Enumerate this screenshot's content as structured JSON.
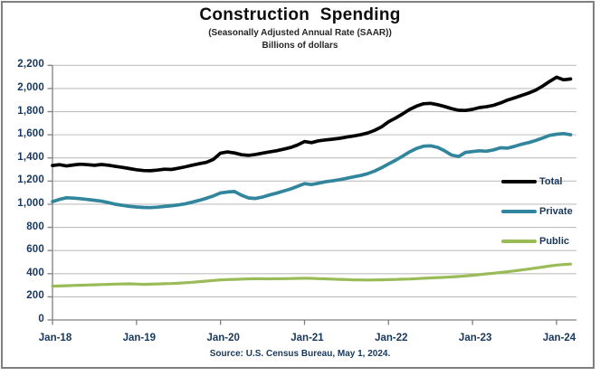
{
  "header": {
    "title": "Construction Spending",
    "subtitle1": "(Seasonally Adjusted Annual Rate (SAAR))",
    "subtitle2": "Billions of dollars"
  },
  "source_note": "Source: U.S. Census Bureau, May 1, 2024.",
  "colors": {
    "total_line": "#000000",
    "private_line": "#31859C",
    "public_line": "#9BBB59",
    "gridline": "#BFBFBF",
    "axis": "#808080",
    "label_text": "#17375D"
  },
  "chart_data": {
    "type": "line",
    "title": "Construction Spending",
    "subtitle": "(Seasonally Adjusted Annual Rate (SAAR))",
    "units": "Billions of dollars",
    "x_frequency": "monthly",
    "x_start": "Jan-18",
    "x_end": "Mar-24",
    "xticks": [
      "Jan-18",
      "Jan-19",
      "Jan-20",
      "Jan-21",
      "Jan-22",
      "Jan-23",
      "Jan-24"
    ],
    "ytick_values": [
      0,
      200,
      400,
      600,
      800,
      1000,
      1200,
      1400,
      1600,
      1800,
      2000,
      2200
    ],
    "ytick_labels": [
      "0",
      "200",
      "400",
      "600",
      "800",
      "1,000",
      "1,200",
      "1,400",
      "1,600",
      "1,800",
      "2,000",
      "2,200"
    ],
    "ylim": [
      0,
      2200
    ],
    "grid": "horizontal",
    "legend_position": "middle-right",
    "series": [
      {
        "name": "Total",
        "color": "#000000",
        "values": [
          1335,
          1342,
          1331,
          1339,
          1346,
          1342,
          1336,
          1343,
          1337,
          1327,
          1318,
          1308,
          1298,
          1291,
          1289,
          1295,
          1303,
          1300,
          1311,
          1324,
          1338,
          1350,
          1362,
          1388,
          1442,
          1452,
          1443,
          1428,
          1422,
          1430,
          1442,
          1452,
          1462,
          1475,
          1490,
          1512,
          1542,
          1532,
          1548,
          1556,
          1562,
          1570,
          1580,
          1590,
          1600,
          1615,
          1638,
          1668,
          1712,
          1745,
          1780,
          1818,
          1848,
          1868,
          1872,
          1860,
          1845,
          1826,
          1812,
          1810,
          1820,
          1835,
          1842,
          1855,
          1875,
          1900,
          1920,
          1940,
          1960,
          1985,
          2020,
          2060,
          2098,
          2075,
          2082
        ]
      },
      {
        "name": "Private",
        "color": "#31859C",
        "values": [
          1022,
          1042,
          1056,
          1053,
          1048,
          1041,
          1034,
          1026,
          1014,
          1000,
          990,
          982,
          976,
          972,
          971,
          975,
          981,
          987,
          994,
          1004,
          1018,
          1034,
          1052,
          1072,
          1098,
          1106,
          1110,
          1078,
          1054,
          1050,
          1062,
          1080,
          1096,
          1114,
          1132,
          1155,
          1178,
          1170,
          1182,
          1194,
          1202,
          1212,
          1224,
          1236,
          1248,
          1264,
          1286,
          1315,
          1348,
          1380,
          1415,
          1452,
          1482,
          1502,
          1505,
          1492,
          1462,
          1425,
          1412,
          1448,
          1455,
          1462,
          1458,
          1470,
          1488,
          1485,
          1500,
          1518,
          1532,
          1550,
          1572,
          1595,
          1605,
          1610,
          1600
        ]
      },
      {
        "name": "Public",
        "color": "#9BBB59",
        "values": [
          292,
          294,
          296,
          298,
          300,
          302,
          304,
          306,
          308,
          310,
          311,
          312,
          310,
          308,
          309,
          311,
          313,
          315,
          318,
          322,
          326,
          331,
          336,
          341,
          346,
          349,
          351,
          353,
          355,
          356,
          356,
          355,
          356,
          357,
          358,
          359,
          361,
          359,
          357,
          355,
          353,
          351,
          349,
          347,
          346,
          345,
          346,
          347,
          348,
          350,
          352,
          354,
          357,
          360,
          363,
          366,
          369,
          372,
          376,
          380,
          386,
          392,
          398,
          404,
          410,
          417,
          424,
          432,
          440,
          448,
          457,
          466,
          474,
          479,
          483
        ]
      }
    ]
  }
}
